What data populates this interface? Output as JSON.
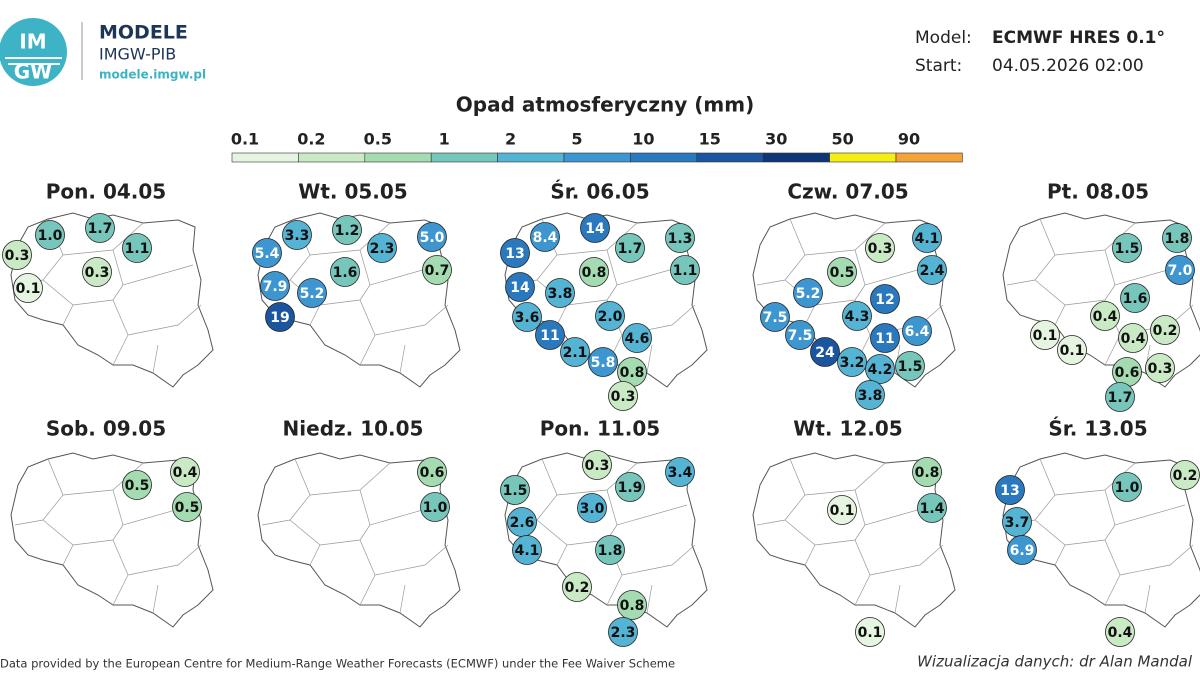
{
  "header": {
    "logo_top": "IM",
    "logo_bottom": "GW",
    "brand": "MODELE",
    "org": "IMGW-PIB",
    "url": "modele.imgw.pl",
    "model_label": "Model:",
    "model_value": "ECMWF HRES 0.1°",
    "start_label": "Start:",
    "start_value": "04.05.2026 02:00"
  },
  "legend": {
    "title": "Opad atmosferyczny (mm)",
    "ticks": [
      "0.1",
      "0.2",
      "0.5",
      "1",
      "2",
      "5",
      "10",
      "15",
      "30",
      "50",
      "90"
    ],
    "colors": [
      "#e6f5e1",
      "#c9eac4",
      "#a5dbb0",
      "#77c6bb",
      "#55b3d3",
      "#3d96cf",
      "#2a78bd",
      "#1b55a0",
      "#0e3574",
      "#f5ee14",
      "#f4a23a",
      "#e41d1d"
    ]
  },
  "panels": [
    {
      "title": "Pon. 04.05",
      "values": [
        "1.0",
        "1.7",
        "1.1",
        "0.3",
        "0.3",
        "0.1"
      ]
    },
    {
      "title": "Wt. 05.05",
      "values": [
        "3.3",
        "1.2",
        "5.0",
        "5.4",
        "2.3",
        "0.7",
        "1.6",
        "7.9",
        "5.2",
        "19"
      ]
    },
    {
      "title": "Śr. 06.05",
      "values": [
        "8.4",
        "14",
        "1.3",
        "13",
        "1.7",
        "1.1",
        "0.8",
        "14",
        "3.8",
        "3.6",
        "2.0",
        "11",
        "4.6",
        "2.1",
        "5.8",
        "0.8",
        "0.3"
      ]
    },
    {
      "title": "Czw. 07.05",
      "values": [
        "4.1",
        "0.3",
        "0.5",
        "2.4",
        "5.2",
        "12",
        "7.5",
        "4.3",
        "11",
        "6.4",
        "7.5",
        "24",
        "3.2",
        "4.2",
        "1.5",
        "3.8"
      ]
    },
    {
      "title": "Pt. 08.05",
      "values": [
        "1.5",
        "1.8",
        "7.0",
        "1.6",
        "0.4",
        "0.2",
        "0.1",
        "0.4",
        "0.1",
        "0.6",
        "0.3",
        "1.7"
      ]
    },
    {
      "title": "Sob. 09.05",
      "values": [
        "0.5",
        "0.4",
        "0.5"
      ]
    },
    {
      "title": "Niedz. 10.05",
      "values": [
        "0.6",
        "1.0"
      ]
    },
    {
      "title": "Pon. 11.05",
      "values": [
        "0.3",
        "3.4",
        "1.5",
        "1.9",
        "3.0",
        "2.6",
        "4.1",
        "1.8",
        "0.2",
        "0.8",
        "2.3"
      ]
    },
    {
      "title": "Wt. 12.05",
      "values": [
        "0.8",
        "0.1",
        "1.4",
        "0.1"
      ]
    },
    {
      "title": "Śr. 13.05",
      "values": [
        "13",
        "1.0",
        "0.2",
        "3.7",
        "6.9",
        "0.4"
      ]
    }
  ],
  "footer": {
    "credit": "Data provided by the European Centre for Medium-Range Weather Forecasts (ECMWF) under the Fee Waiver Scheme",
    "author": "Wizualizacja danych: dr Alan Mandal"
  }
}
